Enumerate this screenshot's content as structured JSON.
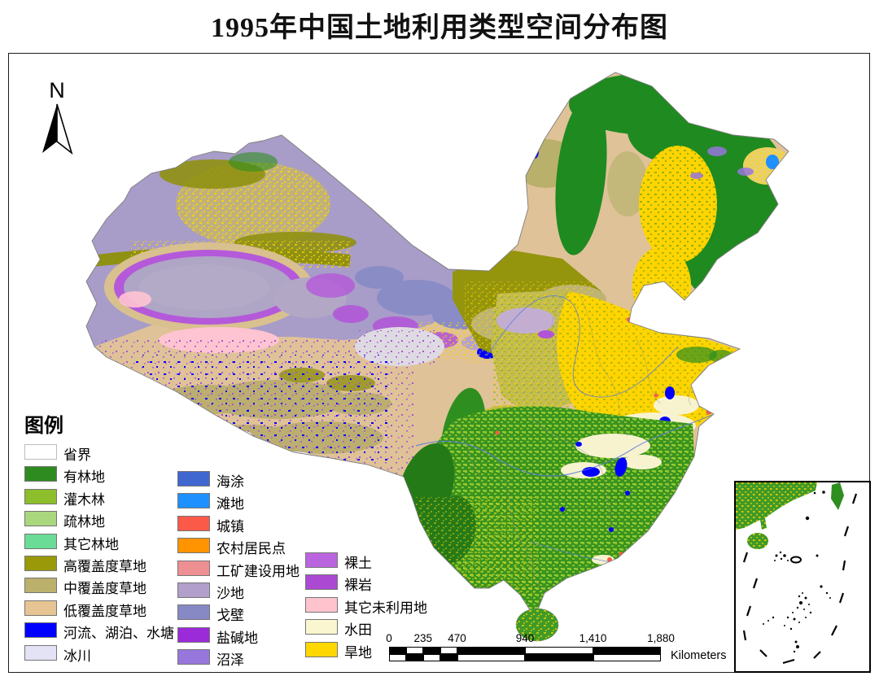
{
  "title": "1995年中国土地利用类型空间分布图",
  "north_arrow": {
    "label": "N"
  },
  "legend": {
    "heading": "图例",
    "columns": [
      [
        {
          "label": "省界",
          "color": "#FFFFFF",
          "border": "#BDBDBD"
        },
        {
          "label": "有林地",
          "color": "#2E8B20"
        },
        {
          "label": "灌木林",
          "color": "#8DBE2B"
        },
        {
          "label": "疏林地",
          "color": "#A9D77E"
        },
        {
          "label": "其它林地",
          "color": "#6ADC96"
        },
        {
          "label": "高覆盖度草地",
          "color": "#99990A"
        },
        {
          "label": "中覆盖度草地",
          "color": "#BCB16C"
        },
        {
          "label": "低覆盖度草地",
          "color": "#E7C493"
        },
        {
          "label": "河流、湖泊、水塘",
          "color": "#0000FF"
        },
        {
          "label": "冰川",
          "color": "#E4E3F5"
        }
      ],
      [
        {
          "label": "海涂",
          "color": "#4066D0"
        },
        {
          "label": "滩地",
          "color": "#1E90FF"
        },
        {
          "label": "城镇",
          "color": "#FA5A47"
        },
        {
          "label": "农村居民点",
          "color": "#FF9400"
        },
        {
          "label": "工矿建设用地",
          "color": "#EE8F94"
        },
        {
          "label": "沙地",
          "color": "#B29FCB"
        },
        {
          "label": "戈壁",
          "color": "#8789C4"
        },
        {
          "label": "盐碱地",
          "color": "#9B2BD8"
        },
        {
          "label": "沼泽",
          "color": "#9877DC"
        }
      ],
      [
        {
          "label": "裸土",
          "color": "#BB64DF"
        },
        {
          "label": "裸岩",
          "color": "#AB49D3"
        },
        {
          "label": "其它未利用地",
          "color": "#FFC3CE"
        },
        {
          "label": "水田",
          "color": "#FAF7D0"
        },
        {
          "label": "旱地",
          "color": "#FFD702"
        }
      ]
    ]
  },
  "scalebar": {
    "tick_labels": [
      "0",
      "235",
      "470",
      "940",
      "1,410",
      "1,880"
    ],
    "tick_km": [
      0,
      235,
      470,
      940,
      1410,
      1880
    ],
    "segment_km": [
      0,
      117.5,
      235,
      352.5,
      470,
      940,
      1410,
      1880
    ],
    "total_km": 1880,
    "unit": "Kilometers"
  }
}
